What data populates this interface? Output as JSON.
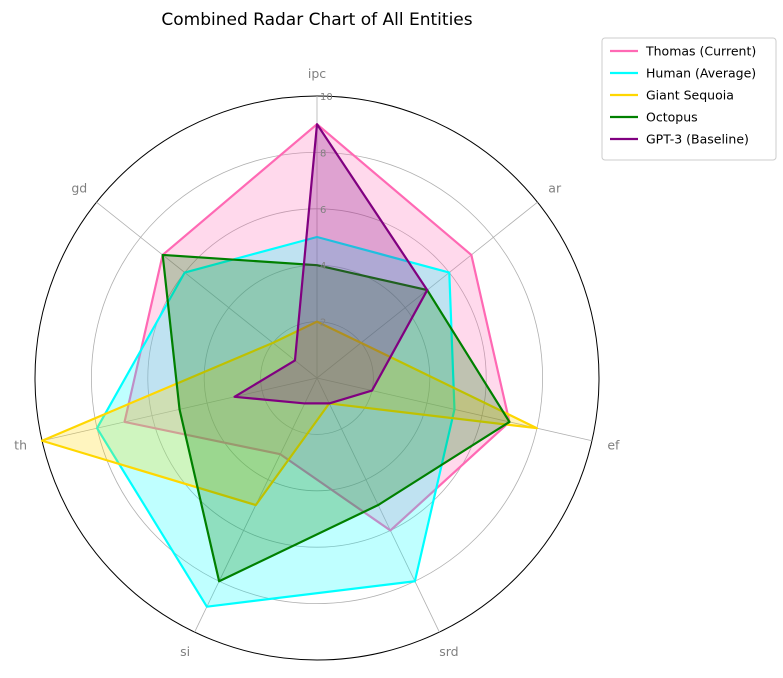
{
  "chart_data": {
    "type": "radar",
    "title": "Combined Radar Chart of All Entities",
    "axes": [
      "ipc",
      "ar",
      "ef",
      "srd",
      "si",
      "th",
      "gd"
    ],
    "rlim": [
      0,
      10
    ],
    "r_ticks": [
      "2",
      "4",
      "6",
      "8",
      "10"
    ],
    "grid": true,
    "legend_position": "upper-right-outside",
    "series": [
      {
        "name": "Thomas (Current)",
        "color": "#ff69b4",
        "fill_opacity": 0.25,
        "values": [
          9,
          7,
          7,
          6,
          3,
          7,
          7
        ]
      },
      {
        "name": "Human (Average)",
        "color": "#00ffff",
        "fill_opacity": 0.25,
        "values": [
          5,
          6,
          5,
          8,
          9,
          8,
          6
        ]
      },
      {
        "name": "Giant Sequoia",
        "color": "#ffd700",
        "fill_opacity": 0.25,
        "values": [
          2,
          2,
          8,
          1,
          5,
          10,
          2
        ]
      },
      {
        "name": "Octopus",
        "color": "#008000",
        "fill_opacity": 0.25,
        "values": [
          4,
          5,
          7,
          5,
          8,
          5,
          7
        ]
      },
      {
        "name": "GPT-3 (Baseline)",
        "color": "#800080",
        "fill_opacity": 0.25,
        "values": [
          9,
          5,
          2,
          1,
          1,
          3,
          1
        ]
      }
    ]
  }
}
